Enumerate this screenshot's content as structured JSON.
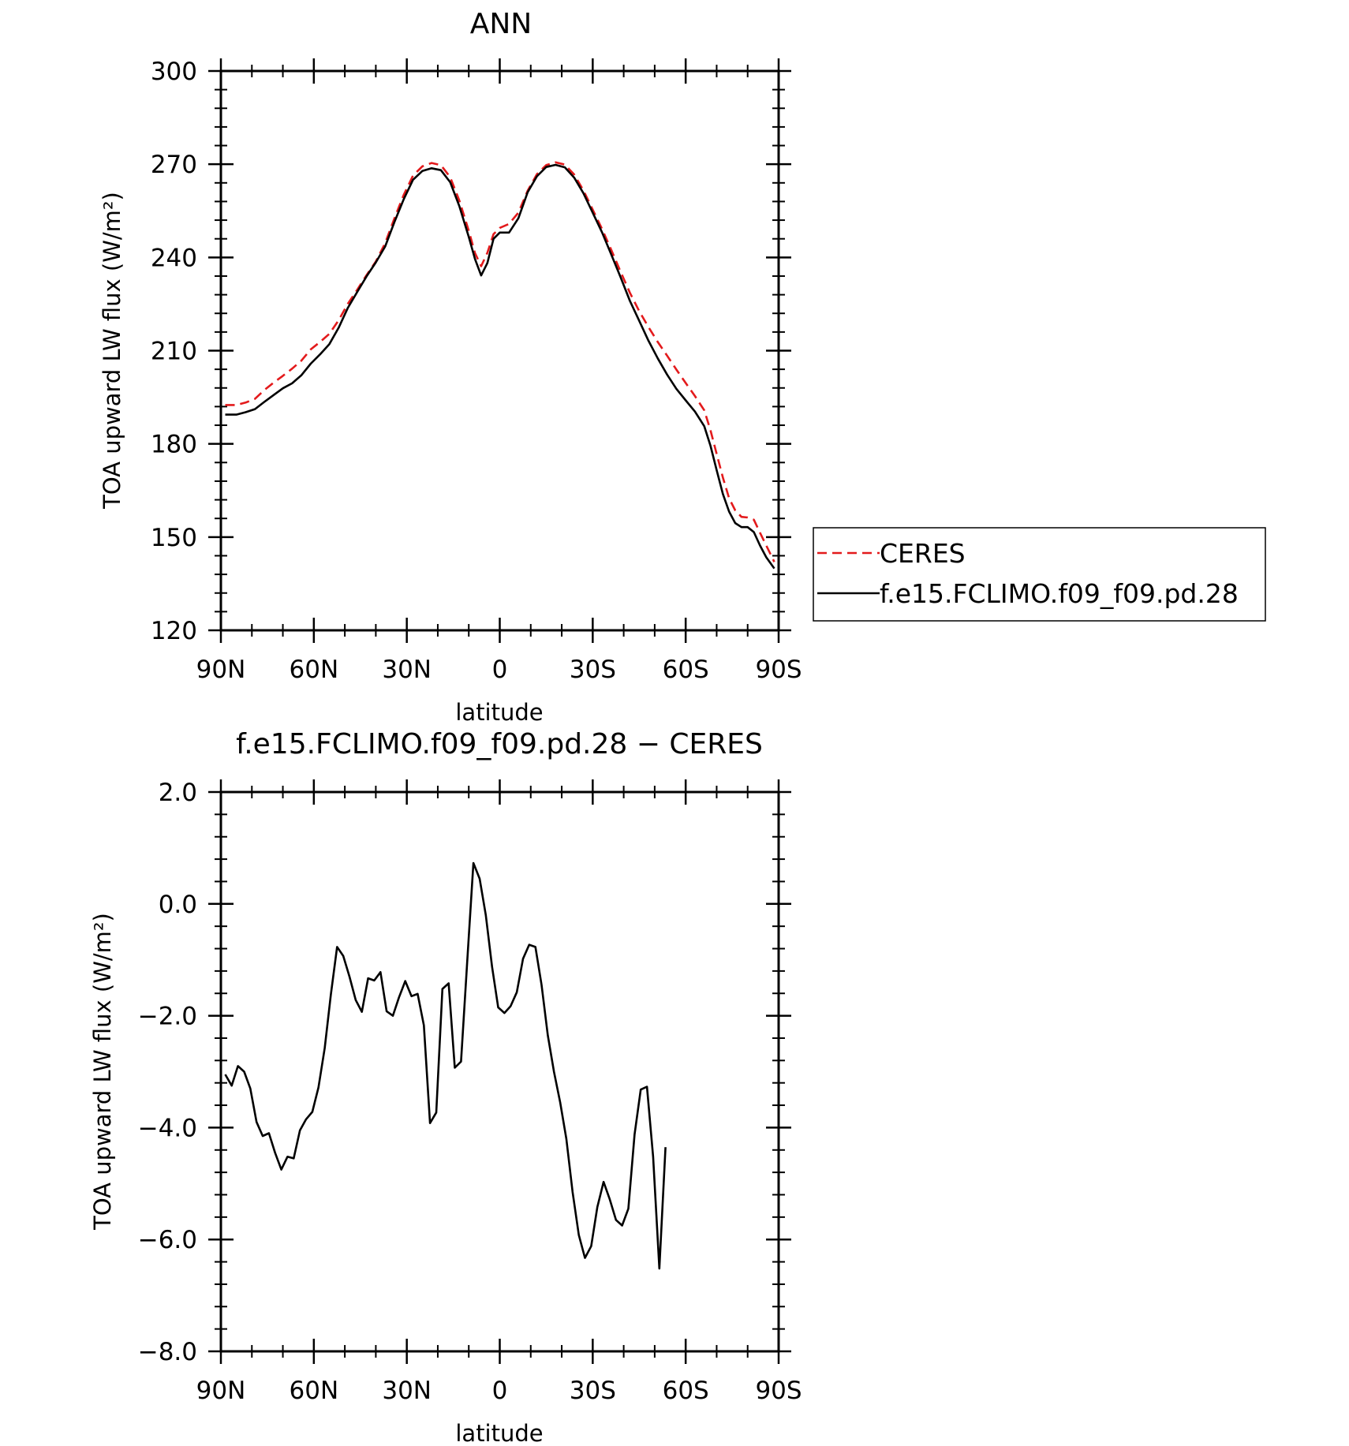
{
  "colors": {
    "ceres": "#e31a1c",
    "model": "#000000"
  },
  "chart_data": [
    {
      "type": "line",
      "title": "ANN",
      "xlabel": "latitude",
      "ylabel": "TOA upward LW flux (W/m²)",
      "x_tick_labels": [
        "90N",
        "60N",
        "30N",
        "0",
        "30S",
        "60S",
        "90S"
      ],
      "y_tick_labels": [
        "120",
        "150",
        "180",
        "210",
        "240",
        "270",
        "300"
      ],
      "xlim": [
        90,
        -90
      ],
      "ylim": [
        120,
        300
      ],
      "legend_position": "right, outside plot",
      "series": [
        {
          "name": "CERES",
          "style": "dashed",
          "color": "#e31a1c",
          "points": [
            [
              88.6,
              192.5
            ],
            [
              85,
              192.5
            ],
            [
              82,
              193.3
            ],
            [
              79,
              194.5
            ],
            [
              76,
              197.3
            ],
            [
              73,
              199.7
            ],
            [
              70,
              201.9
            ],
            [
              67,
              204.2
            ],
            [
              64,
              206.8
            ],
            [
              61,
              210.4
            ],
            [
              58,
              212.8
            ],
            [
              55,
              215.4
            ],
            [
              52,
              219.8
            ],
            [
              49,
              225.1
            ],
            [
              46,
              229.6
            ],
            [
              43,
              234.3
            ],
            [
              40,
              238.7
            ],
            [
              37,
              244.6
            ],
            [
              34,
              252.6
            ],
            [
              31,
              260.1
            ],
            [
              28,
              266.3
            ],
            [
              25,
              269.3
            ],
            [
              22,
              270.4
            ],
            [
              19,
              269.7
            ],
            [
              16,
              265.8
            ],
            [
              13,
              258.2
            ],
            [
              10,
              248.6
            ],
            [
              8,
              241.4
            ],
            [
              6,
              237.2
            ],
            [
              4,
              241.5
            ],
            [
              2,
              247.5
            ],
            [
              0,
              249.5
            ],
            [
              -3,
              250.8
            ],
            [
              -6,
              254.4
            ],
            [
              -9,
              261.5
            ],
            [
              -12,
              266.8
            ],
            [
              -15,
              269.7
            ],
            [
              -18,
              270.6
            ],
            [
              -21,
              269.9
            ],
            [
              -24,
              266.7
            ],
            [
              -27,
              261.6
            ],
            [
              -30,
              255.4
            ],
            [
              -33,
              249.2
            ],
            [
              -36,
              242.4
            ],
            [
              -39,
              235.4
            ],
            [
              -42,
              228.6
            ],
            [
              -45,
              222.7
            ],
            [
              -48,
              217.6
            ],
            [
              -51,
              212.8
            ],
            [
              -54,
              208.4
            ],
            [
              -57,
              203.9
            ],
            [
              -60,
              199.6
            ],
            [
              -63,
              195.4
            ],
            [
              -66,
              190.8
            ],
            [
              -68,
              184.4
            ],
            [
              -70,
              176.8
            ],
            [
              -72,
              169.2
            ],
            [
              -74,
              162.5
            ],
            [
              -76,
              158.6
            ],
            [
              -78,
              156.5
            ],
            [
              -80,
              156.3
            ],
            [
              -82,
              155.6
            ],
            [
              -84,
              151.4
            ],
            [
              -86,
              147.3
            ],
            [
              -88.6,
              142.0
            ]
          ]
        },
        {
          "name": "f.e15.FCLIMO.f09_f09.pd.28",
          "style": "solid",
          "color": "#000000",
          "points": [
            [
              88.6,
              189.4
            ],
            [
              85,
              189.4
            ],
            [
              82,
              190.2
            ],
            [
              79,
              191.2
            ],
            [
              76,
              193.5
            ],
            [
              73,
              195.7
            ],
            [
              70,
              197.9
            ],
            [
              67,
              199.5
            ],
            [
              64,
              202.1
            ],
            [
              61,
              205.8
            ],
            [
              58,
              208.8
            ],
            [
              55,
              212.1
            ],
            [
              52,
              217.4
            ],
            [
              49,
              223.8
            ],
            [
              46,
              228.9
            ],
            [
              43,
              233.9
            ],
            [
              40,
              238.4
            ],
            [
              37,
              243.5
            ],
            [
              34,
              251.4
            ],
            [
              31,
              258.7
            ],
            [
              28,
              265.0
            ],
            [
              25,
              267.8
            ],
            [
              22,
              268.7
            ],
            [
              19,
              268.1
            ],
            [
              16,
              264.2
            ],
            [
              13,
              256.4
            ],
            [
              10,
              246.6
            ],
            [
              8,
              239.5
            ],
            [
              6,
              234.2
            ],
            [
              4,
              238.2
            ],
            [
              2,
              246.0
            ],
            [
              0,
              248.0
            ],
            [
              -3,
              248.0
            ],
            [
              -6,
              252.6
            ],
            [
              -9,
              261.0
            ],
            [
              -12,
              266.1
            ],
            [
              -15,
              269.1
            ],
            [
              -18,
              269.8
            ],
            [
              -21,
              269.0
            ],
            [
              -24,
              265.7
            ],
            [
              -27,
              260.7
            ],
            [
              -30,
              254.4
            ],
            [
              -33,
              248.1
            ],
            [
              -36,
              240.9
            ],
            [
              -39,
              233.6
            ],
            [
              -42,
              226.0
            ],
            [
              -45,
              219.6
            ],
            [
              -48,
              213.2
            ],
            [
              -51,
              207.5
            ],
            [
              -54,
              202.3
            ],
            [
              -57,
              197.7
            ],
            [
              -60,
              194.0
            ],
            [
              -63,
              190.4
            ],
            [
              -66,
              185.7
            ],
            [
              -68,
              179.4
            ],
            [
              -70,
              171.6
            ],
            [
              -72,
              163.9
            ],
            [
              -74,
              158.2
            ],
            [
              -76,
              154.5
            ],
            [
              -78,
              153.2
            ],
            [
              -80,
              153.2
            ],
            [
              -82,
              151.6
            ],
            [
              -84,
              147.3
            ],
            [
              -86,
              143.5
            ],
            [
              -88.6,
              139.9
            ]
          ]
        }
      ]
    },
    {
      "type": "line",
      "title": "f.e15.FCLIMO.f09_f09.pd.28 − CERES",
      "xlabel": "latitude",
      "ylabel": "TOA upward LW flux (W/m²)",
      "x_tick_labels": [
        "90N",
        "60N",
        "30N",
        "0",
        "30S",
        "60S",
        "90S"
      ],
      "y_tick_labels": [
        "−8.0",
        "−6.0",
        "−4.0",
        "−2.0",
        "0.0",
        "2.0"
      ],
      "xlim": [
        90,
        -90
      ],
      "ylim": [
        -8,
        2
      ],
      "series": [
        {
          "style": "solid",
          "color": "#000000",
          "points": [
            [
              88.6,
              -3.05
            ],
            [
              86.5,
              -3.25
            ],
            [
              84.5,
              -2.9
            ],
            [
              82.5,
              -3.0
            ],
            [
              80.5,
              -3.3
            ],
            [
              78.5,
              -3.9
            ],
            [
              76.5,
              -4.15
            ],
            [
              74.5,
              -4.1
            ],
            [
              72.5,
              -4.45
            ],
            [
              70.5,
              -4.75
            ],
            [
              68.5,
              -4.52
            ],
            [
              66.5,
              -4.55
            ],
            [
              64.5,
              -4.05
            ],
            [
              62.5,
              -3.85
            ],
            [
              60.5,
              -3.72
            ],
            [
              58.5,
              -3.28
            ],
            [
              56.5,
              -2.58
            ],
            [
              54.5,
              -1.62
            ],
            [
              52.5,
              -0.77
            ],
            [
              50.5,
              -0.93
            ],
            [
              48.5,
              -1.3
            ],
            [
              46.5,
              -1.72
            ],
            [
              44.5,
              -1.93
            ],
            [
              42.5,
              -1.33
            ],
            [
              40.5,
              -1.37
            ],
            [
              38.5,
              -1.22
            ],
            [
              36.5,
              -1.92
            ],
            [
              34.5,
              -2.0
            ],
            [
              32.5,
              -1.67
            ],
            [
              30.5,
              -1.38
            ],
            [
              28.5,
              -1.65
            ],
            [
              26.5,
              -1.61
            ],
            [
              24.5,
              -2.17
            ],
            [
              22.5,
              -3.92
            ],
            [
              20.5,
              -3.73
            ],
            [
              18.5,
              -1.52
            ],
            [
              16.5,
              -1.42
            ],
            [
              14.5,
              -2.93
            ],
            [
              12.5,
              -2.82
            ],
            [
              10.5,
              -1.02
            ],
            [
              8.5,
              0.73
            ],
            [
              6.5,
              0.45
            ],
            [
              4.5,
              -0.2
            ],
            [
              2.5,
              -1.12
            ],
            [
              0.5,
              -1.85
            ],
            [
              -1.5,
              -1.95
            ],
            [
              -3.5,
              -1.83
            ],
            [
              -5.5,
              -1.58
            ],
            [
              -7.5,
              -0.98
            ],
            [
              -9.5,
              -0.73
            ],
            [
              -11.5,
              -0.77
            ],
            [
              -13.5,
              -1.45
            ],
            [
              -15.5,
              -2.35
            ],
            [
              -17.5,
              -3.0
            ],
            [
              -19.5,
              -3.55
            ],
            [
              -21.5,
              -4.2
            ],
            [
              -23.5,
              -5.15
            ],
            [
              -25.5,
              -5.92
            ],
            [
              -27.5,
              -6.33
            ],
            [
              -29.5,
              -6.12
            ],
            [
              -31.5,
              -5.42
            ],
            [
              -33.5,
              -4.97
            ],
            [
              -35.5,
              -5.28
            ],
            [
              -37.5,
              -5.65
            ],
            [
              -39.5,
              -5.75
            ],
            [
              -41.5,
              -5.45
            ],
            [
              -43.5,
              -4.12
            ],
            [
              -45.5,
              -3.32
            ],
            [
              -47.5,
              -3.27
            ],
            [
              -49.5,
              -4.52
            ],
            [
              -51.5,
              -6.52
            ],
            [
              -53.5,
              -4.35
            ]
          ]
        }
      ]
    }
  ],
  "legend": {
    "entries": [
      {
        "label": "CERES",
        "style": "dashed",
        "color": "#e31a1c"
      },
      {
        "label": "f.e15.FCLIMO.f09_f09.pd.28",
        "style": "solid",
        "color": "#000000"
      }
    ]
  }
}
